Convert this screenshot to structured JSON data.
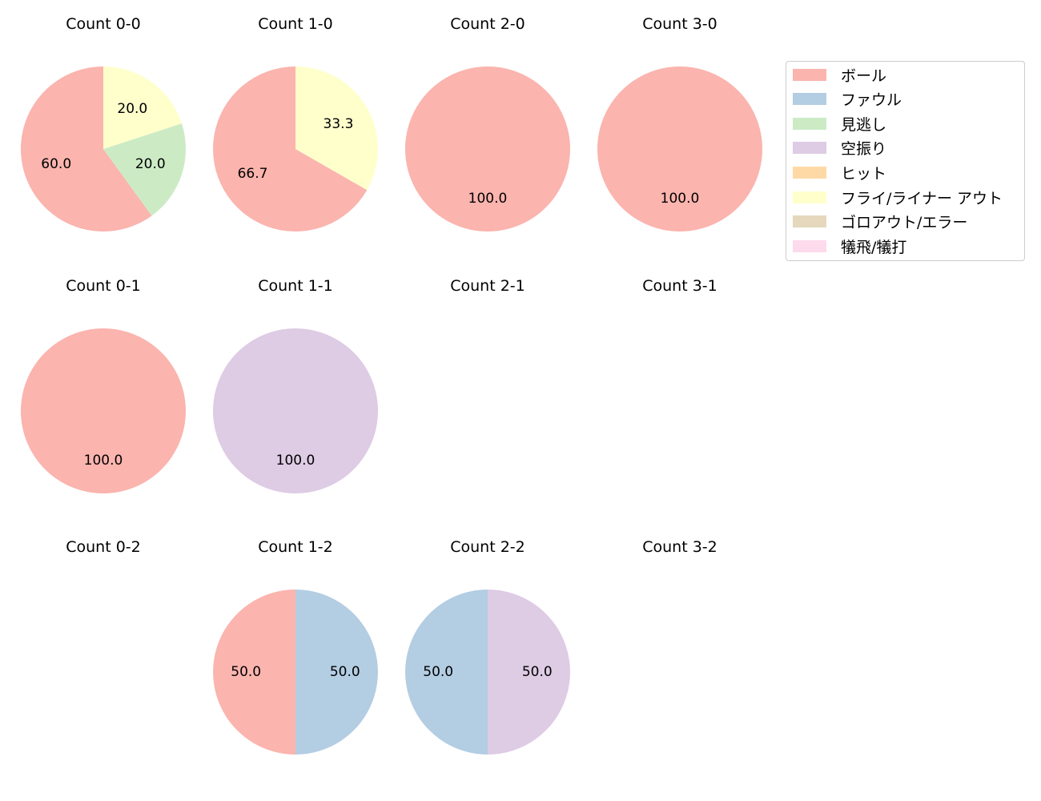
{
  "chart_data": {
    "type": "pie",
    "categories": [
      "ボール",
      "ファウル",
      "見逃し",
      "空振り",
      "ヒット",
      "フライ/ライナー アウト",
      "ゴロアウト/エラー",
      "犠飛/犠打"
    ],
    "colors": [
      "#fbb4ae",
      "#b3cde3",
      "#ccebc5",
      "#decbe4",
      "#fed9a6",
      "#ffffcc",
      "#e5d8bd",
      "#fddaec"
    ],
    "legend_placement": "top-right",
    "panels": [
      {
        "title": "Count 0-0",
        "values": [
          60.0,
          0,
          20.0,
          0,
          0,
          20.0,
          0,
          0
        ],
        "labels": [
          "60.0",
          "",
          "20.0",
          "",
          "",
          "20.0",
          "",
          ""
        ]
      },
      {
        "title": "Count 1-0",
        "values": [
          66.7,
          0,
          0,
          0,
          0,
          33.3,
          0,
          0
        ],
        "labels": [
          "66.7",
          "",
          "",
          "",
          "",
          "33.3",
          "",
          ""
        ]
      },
      {
        "title": "Count 2-0",
        "values": [
          100.0,
          0,
          0,
          0,
          0,
          0,
          0,
          0
        ],
        "labels": [
          "100.0",
          "",
          "",
          "",
          "",
          "",
          "",
          ""
        ]
      },
      {
        "title": "Count 3-0",
        "values": [
          100.0,
          0,
          0,
          0,
          0,
          0,
          0,
          0
        ],
        "labels": [
          "100.0",
          "",
          "",
          "",
          "",
          "",
          "",
          ""
        ]
      },
      {
        "title": "Count 0-1",
        "values": [
          100.0,
          0,
          0,
          0,
          0,
          0,
          0,
          0
        ],
        "labels": [
          "100.0",
          "",
          "",
          "",
          "",
          "",
          "",
          ""
        ]
      },
      {
        "title": "Count 1-1",
        "values": [
          0,
          0,
          0,
          100.0,
          0,
          0,
          0,
          0
        ],
        "labels": [
          "",
          "",
          "",
          "100.0",
          "",
          "",
          "",
          ""
        ]
      },
      {
        "title": "Count 2-1",
        "values": [],
        "labels": []
      },
      {
        "title": "Count 3-1",
        "values": [],
        "labels": []
      },
      {
        "title": "Count 0-2",
        "values": [],
        "labels": []
      },
      {
        "title": "Count 1-2",
        "values": [
          50.0,
          50.0,
          0,
          0,
          0,
          0,
          0,
          0
        ],
        "labels": [
          "50.0",
          "50.0",
          "",
          "",
          "",
          "",
          "",
          ""
        ]
      },
      {
        "title": "Count 2-2",
        "values": [
          0,
          50.0,
          0,
          50.0,
          0,
          0,
          0,
          0
        ],
        "labels": [
          "",
          "50.0",
          "",
          "50.0",
          "",
          "",
          "",
          ""
        ]
      },
      {
        "title": "Count 3-2",
        "values": [],
        "labels": []
      }
    ]
  }
}
